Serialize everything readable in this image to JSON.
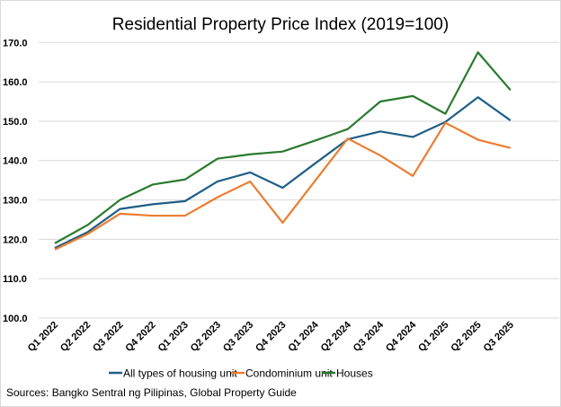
{
  "chart_data": {
    "type": "line",
    "title": "Residential Property Price Index (2019=100)",
    "xlabel": "",
    "ylabel": "",
    "categories": [
      "Q1 2022",
      "Q2 2022",
      "Q3 2022",
      "Q4 2022",
      "Q1 2023",
      "Q2 2023",
      "Q3 2023",
      "Q4 2023",
      "Q1 2024",
      "Q2 2024",
      "Q3 2024",
      "Q4 2024",
      "Q1 2025",
      "Q2 2025",
      "Q3 2025"
    ],
    "ylim": [
      100,
      170
    ],
    "yticks": [
      "100.0",
      "110.0",
      "120.0",
      "130.0",
      "140.0",
      "150.0",
      "160.0",
      "170.0"
    ],
    "grid": true,
    "legend_position": "bottom",
    "series": [
      {
        "name": "All types of housing unit",
        "color": "#1f5f86",
        "values": [
          117.8,
          121.8,
          127.7,
          128.9,
          129.7,
          134.7,
          137.0,
          133.1,
          139.3,
          145.4,
          147.4,
          146.0,
          149.8,
          156.1,
          150.2
        ]
      },
      {
        "name": "Condominium unit",
        "color": "#ed7d31",
        "values": [
          117.4,
          121.3,
          126.5,
          126.0,
          126.0,
          130.7,
          134.7,
          124.2,
          134.9,
          145.6,
          141.3,
          136.1,
          149.6,
          145.3,
          143.2
        ]
      },
      {
        "name": "Houses",
        "color": "#2a7a2e",
        "values": [
          119.0,
          123.6,
          130.0,
          133.9,
          135.2,
          140.5,
          141.6,
          142.3,
          145.1,
          148.0,
          155.0,
          156.4,
          151.9,
          167.5,
          157.9
        ]
      }
    ],
    "source": "Sources: Bangko Sentral ng Pilipinas, Global Property Guide"
  }
}
